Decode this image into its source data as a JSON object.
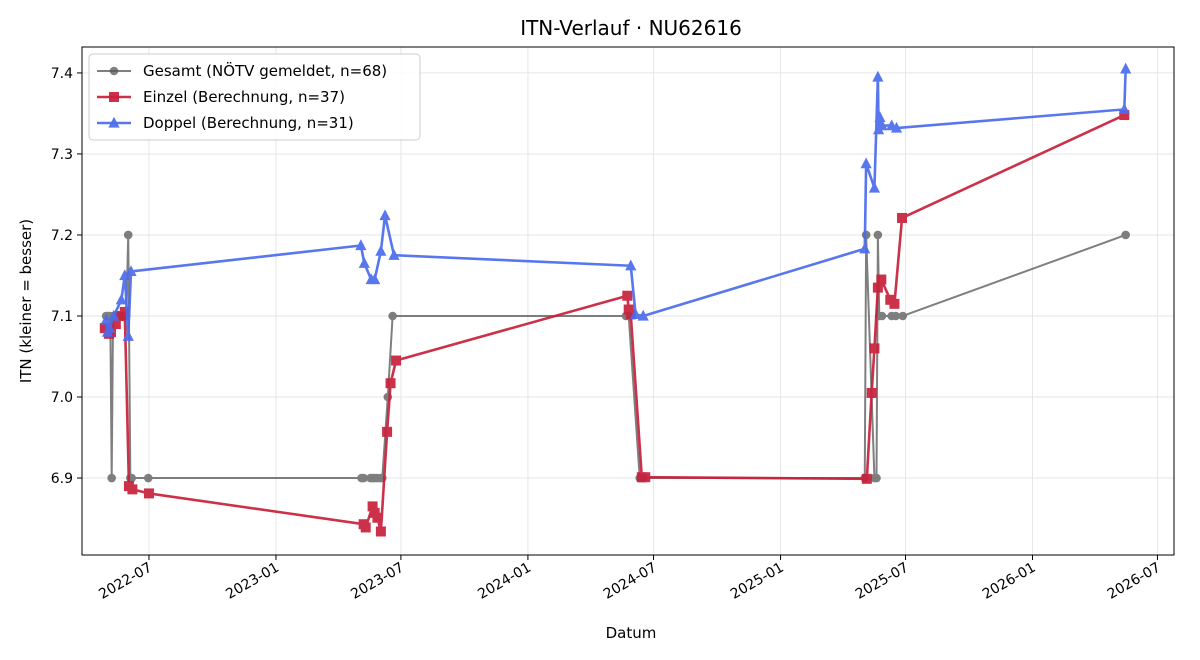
{
  "chart_data": {
    "type": "line",
    "title": "ITN-Verlauf · NU62616",
    "xlabel": "Datum",
    "ylabel": "ITN  (kleiner = besser)",
    "xlim": [
      "2022-03-26",
      "2026-07-25"
    ],
    "ylim": [
      6.805,
      7.432
    ],
    "x_ticks": [
      "2022-07-01",
      "2023-01-01",
      "2023-07-01",
      "2024-01-01",
      "2024-07-01",
      "2025-01-01",
      "2025-07-01",
      "2026-01-01",
      "2026-07-01"
    ],
    "x_tick_labels": [
      "2022-07",
      "2023-01",
      "2023-07",
      "2024-01",
      "2024-07",
      "2025-01",
      "2025-07",
      "2026-01",
      "2026-07"
    ],
    "y_ticks": [
      6.9,
      7.0,
      7.1,
      7.2,
      7.3,
      7.4
    ],
    "y_tick_labels": [
      "6.9",
      "7.0",
      "7.1",
      "7.2",
      "7.3",
      "7.4"
    ],
    "grid": true,
    "legend_position": "top-left",
    "series": [
      {
        "name": "Gesamt (NÖTV gemeldet, n=68)",
        "color": "#555555",
        "marker": "circle",
        "points": [
          [
            "2022-04-30",
            7.1
          ],
          [
            "2022-05-02",
            7.1
          ],
          [
            "2022-05-04",
            7.1
          ],
          [
            "2022-05-06",
            7.1
          ],
          [
            "2022-05-08",
            6.9
          ],
          [
            "2022-05-10",
            7.1
          ],
          [
            "2022-05-14",
            7.1
          ],
          [
            "2022-05-20",
            7.1
          ],
          [
            "2022-05-25",
            7.1
          ],
          [
            "2022-05-29",
            7.1
          ],
          [
            "2022-06-01",
            7.2
          ],
          [
            "2022-06-04",
            6.9
          ],
          [
            "2022-06-06",
            6.9
          ],
          [
            "2022-06-30",
            6.9
          ],
          [
            "2023-05-05",
            6.9
          ],
          [
            "2023-05-08",
            6.9
          ],
          [
            "2023-05-18",
            6.9
          ],
          [
            "2023-05-21",
            6.9
          ],
          [
            "2023-05-23",
            6.9
          ],
          [
            "2023-05-27",
            6.9
          ],
          [
            "2023-06-01",
            6.9
          ],
          [
            "2023-06-04",
            6.9
          ],
          [
            "2023-06-12",
            7.0
          ],
          [
            "2023-06-19",
            7.1
          ],
          [
            "2024-05-22",
            7.1
          ],
          [
            "2024-05-26",
            7.1
          ],
          [
            "2024-06-11",
            6.9
          ],
          [
            "2024-06-14",
            6.9
          ],
          [
            "2024-06-16",
            6.9
          ],
          [
            "2025-05-03",
            6.9
          ],
          [
            "2025-05-05",
            7.2
          ],
          [
            "2025-05-17",
            6.9
          ],
          [
            "2025-05-20",
            6.9
          ],
          [
            "2025-05-22",
            7.2
          ],
          [
            "2025-05-24",
            7.1
          ],
          [
            "2025-05-28",
            7.1
          ],
          [
            "2025-06-11",
            7.1
          ],
          [
            "2025-06-17",
            7.1
          ],
          [
            "2025-06-27",
            7.1
          ],
          [
            "2026-05-16",
            7.2
          ]
        ]
      },
      {
        "name": "Einzel (Berechnung, n=37)",
        "color": "#c8203b",
        "marker": "square",
        "points": [
          [
            "2022-04-28",
            7.085
          ],
          [
            "2022-05-04",
            7.078
          ],
          [
            "2022-05-07",
            7.08
          ],
          [
            "2022-05-14",
            7.09
          ],
          [
            "2022-05-20",
            7.1
          ],
          [
            "2022-05-27",
            7.105
          ],
          [
            "2022-06-02",
            6.89
          ],
          [
            "2022-06-07",
            6.886
          ],
          [
            "2022-07-01",
            6.881
          ],
          [
            "2023-05-08",
            6.843
          ],
          [
            "2023-05-11",
            6.839
          ],
          [
            "2023-05-21",
            6.865
          ],
          [
            "2023-05-24",
            6.857
          ],
          [
            "2023-05-28",
            6.851
          ],
          [
            "2023-06-02",
            6.834
          ],
          [
            "2023-06-11",
            6.957
          ],
          [
            "2023-06-16",
            7.017
          ],
          [
            "2023-06-24",
            7.045
          ],
          [
            "2024-05-24",
            7.125
          ],
          [
            "2024-05-26",
            7.108
          ],
          [
            "2024-05-29",
            7.102
          ],
          [
            "2024-06-14",
            6.901
          ],
          [
            "2024-06-19",
            6.901
          ],
          [
            "2025-05-06",
            6.899
          ],
          [
            "2025-05-13",
            7.005
          ],
          [
            "2025-05-17",
            7.06
          ],
          [
            "2025-05-22",
            7.135
          ],
          [
            "2025-05-27",
            7.145
          ],
          [
            "2025-06-09",
            7.12
          ],
          [
            "2025-06-15",
            7.115
          ],
          [
            "2025-06-26",
            7.221
          ],
          [
            "2026-05-14",
            7.348
          ]
        ]
      },
      {
        "name": "Doppel (Berechnung, n=31)",
        "color": "#4a6cee",
        "marker": "triangle",
        "points": [
          [
            "2022-04-30",
            7.095
          ],
          [
            "2022-05-02",
            7.08
          ],
          [
            "2022-05-05",
            7.085
          ],
          [
            "2022-05-11",
            7.1
          ],
          [
            "2022-05-22",
            7.12
          ],
          [
            "2022-05-27",
            7.15
          ],
          [
            "2022-06-01",
            7.075
          ],
          [
            "2022-06-05",
            7.155
          ],
          [
            "2023-05-04",
            7.187
          ],
          [
            "2023-05-09",
            7.165
          ],
          [
            "2023-05-19",
            7.145
          ],
          [
            "2023-05-24",
            7.145
          ],
          [
            "2023-06-02",
            7.18
          ],
          [
            "2023-06-08",
            7.224
          ],
          [
            "2023-06-21",
            7.175
          ],
          [
            "2024-05-29",
            7.162
          ],
          [
            "2024-06-05",
            7.102
          ],
          [
            "2024-06-16",
            7.1
          ],
          [
            "2025-05-03",
            7.183
          ],
          [
            "2025-05-05",
            7.288
          ],
          [
            "2025-05-17",
            7.258
          ],
          [
            "2025-05-22",
            7.395
          ],
          [
            "2025-05-23",
            7.33
          ],
          [
            "2025-05-25",
            7.345
          ],
          [
            "2025-05-28",
            7.335
          ],
          [
            "2025-06-11",
            7.335
          ],
          [
            "2025-06-18",
            7.332
          ],
          [
            "2026-05-14",
            7.355
          ],
          [
            "2026-05-16",
            7.405
          ]
        ]
      }
    ]
  }
}
